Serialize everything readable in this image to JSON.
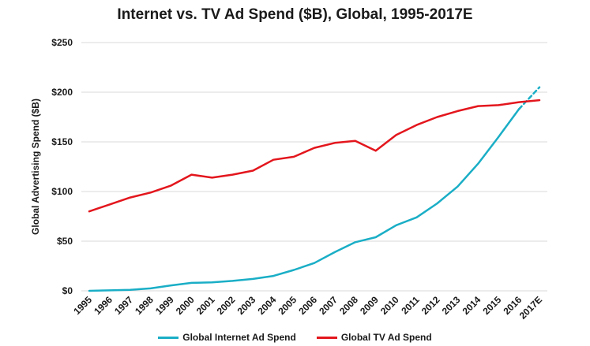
{
  "chart_data": {
    "type": "line",
    "title": "Internet vs. TV Ad Spend ($B), Global, 1995-2017E",
    "xlabel": "",
    "ylabel": "Global Advertising Spend ($B)",
    "ylim": [
      0,
      250
    ],
    "yticks": [
      "$0",
      "$50",
      "$100",
      "$150",
      "$200",
      "$250"
    ],
    "grid": true,
    "legend_position": "bottom",
    "categories": [
      "1995",
      "1996",
      "1997",
      "1998",
      "1999",
      "2000",
      "2001",
      "2002",
      "2003",
      "2004",
      "2005",
      "2006",
      "2007",
      "2008",
      "2009",
      "2010",
      "2011",
      "2012",
      "2013",
      "2014",
      "2015",
      "2016",
      "2017E"
    ],
    "series": [
      {
        "name": "Global Internet Ad Spend",
        "color": "#1aaec6",
        "values": [
          0,
          0.5,
          1,
          2.5,
          5.5,
          8,
          8.5,
          10,
          12,
          15,
          21,
          28,
          39,
          49,
          54,
          66,
          74,
          88,
          105,
          128,
          155,
          183,
          205
        ],
        "projected_from_index": 21
      },
      {
        "name": "Global TV Ad Spend",
        "color": "#e3161d",
        "values": [
          80,
          87,
          94,
          99,
          106,
          117,
          114,
          117,
          121,
          132,
          135,
          144,
          149,
          151,
          141,
          157,
          167,
          175,
          181,
          186,
          187,
          190,
          192
        ]
      }
    ]
  }
}
